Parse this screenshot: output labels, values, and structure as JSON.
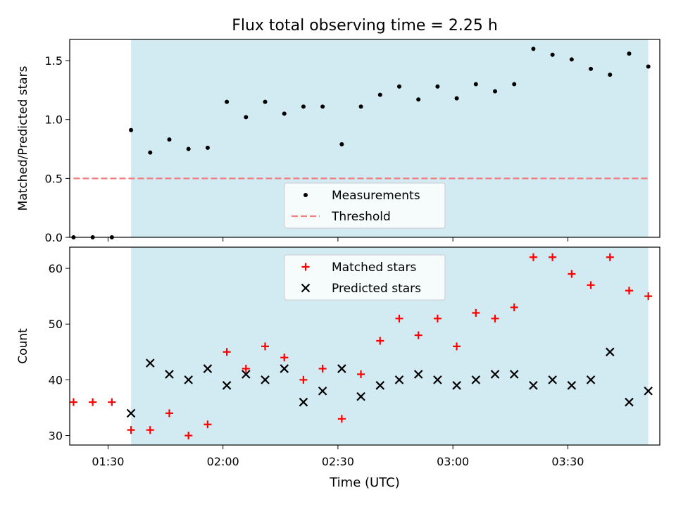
{
  "chart_data": {
    "type": "scatter",
    "title": "Flux total observing time = 2.25 h",
    "xlabel": "Time (UTC)",
    "x_tick_labels": [
      "01:30",
      "02:00",
      "02:30",
      "03:00",
      "03:30"
    ],
    "x": [
      "01:21",
      "01:26",
      "01:31",
      "01:36",
      "01:41",
      "01:46",
      "01:51",
      "01:56",
      "02:01",
      "02:06",
      "02:11",
      "02:16",
      "02:21",
      "02:26",
      "02:31",
      "02:36",
      "02:41",
      "02:46",
      "02:51",
      "02:56",
      "03:01",
      "03:06",
      "03:11",
      "03:16",
      "03:21",
      "03:26",
      "03:31",
      "03:36",
      "03:41",
      "03:46",
      "03:51"
    ],
    "shaded_interval": [
      "01:36",
      "03:51"
    ],
    "shade_color": "#add8e6",
    "panels": [
      {
        "ylabel": "Matched/Predicted stars",
        "ylim": [
          0,
          1.68
        ],
        "y_ticks": [
          "0.0",
          "0.5",
          "1.0",
          "1.5"
        ],
        "legend_position": "lower-center",
        "series": [
          {
            "name": "Measurements",
            "marker": "dot",
            "color": "#000000",
            "values": [
              0,
              0,
              0,
              0.91,
              0.72,
              0.83,
              0.75,
              0.76,
              1.15,
              1.02,
              1.15,
              1.05,
              1.11,
              1.11,
              0.79,
              1.11,
              1.21,
              1.28,
              1.17,
              1.28,
              1.18,
              1.3,
              1.24,
              1.3,
              1.6,
              1.55,
              1.51,
              1.43,
              1.38,
              1.56,
              1.45
            ]
          },
          {
            "name": "Threshold",
            "marker": "dashed-line",
            "color": "#f08080",
            "values": [
              0.5,
              0.5
            ]
          }
        ]
      },
      {
        "ylabel": "Count",
        "ylim": [
          28.3,
          63.8
        ],
        "y_ticks": [
          "30",
          "40",
          "50",
          "60"
        ],
        "legend_position": "upper-center",
        "series": [
          {
            "name": "Matched stars",
            "marker": "plus",
            "color": "#ff0000",
            "values": [
              36,
              36,
              36,
              31,
              31,
              34,
              30,
              32,
              45,
              42,
              46,
              44,
              40,
              42,
              33,
              41,
              47,
              51,
              48,
              51,
              46,
              52,
              51,
              53,
              62,
              62,
              59,
              57,
              62,
              56,
              55
            ]
          },
          {
            "name": "Predicted stars",
            "marker": "x",
            "color": "#000000",
            "values": [
              null,
              null,
              null,
              34,
              43,
              41,
              40,
              42,
              39,
              41,
              40,
              42,
              36,
              38,
              42,
              37,
              39,
              40,
              41,
              40,
              39,
              40,
              41,
              41,
              39,
              40,
              39,
              40,
              45,
              36,
              38
            ]
          }
        ]
      }
    ]
  }
}
